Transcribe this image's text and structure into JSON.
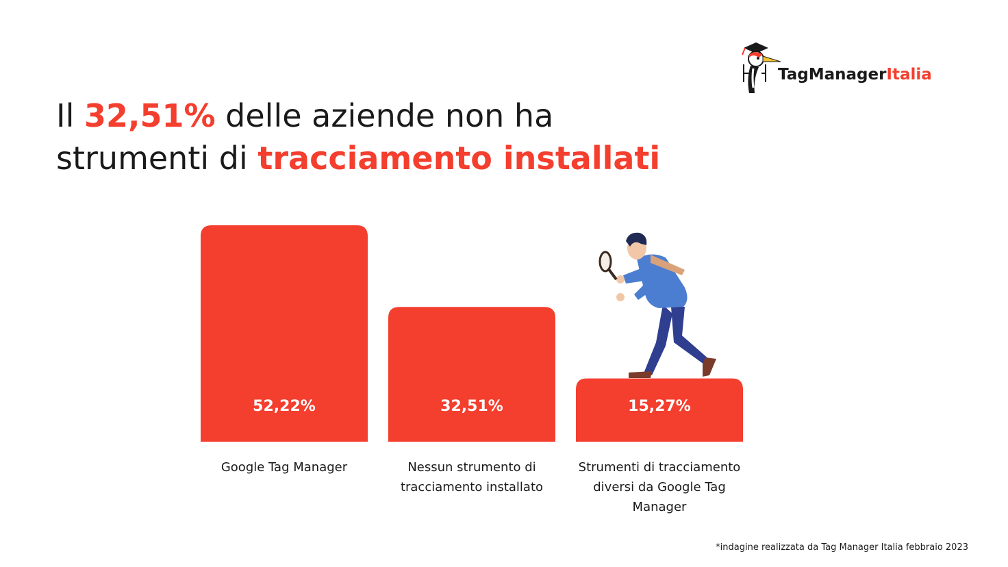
{
  "title": {
    "prefix": "Il ",
    "highlight": "32,51%",
    "middle": " delle aziende non ha",
    "line2_prefix": "strumenti di ",
    "line2_highlight": "tracciamento installati"
  },
  "logo": {
    "name_part1": "TagManager",
    "name_part2": "Italia"
  },
  "colors": {
    "accent": "#f43e2e",
    "text": "#1a1a1a",
    "bar_label": "#ffffff"
  },
  "chart_data": {
    "type": "bar",
    "categories": [
      "Google Tag Manager",
      "Nessun strumento di tracciamento installato",
      "Strumenti di tracciamento diversi da Google Tag Manager"
    ],
    "values": [
      52.22,
      32.51,
      15.27
    ],
    "value_labels": [
      "52,22%",
      "32,51%",
      "15,27%"
    ],
    "ylim": [
      0,
      52.22
    ],
    "grid": false,
    "legend": "none"
  },
  "footnote": "*indagine realizzata da Tag Manager Italia febbraio 2023"
}
